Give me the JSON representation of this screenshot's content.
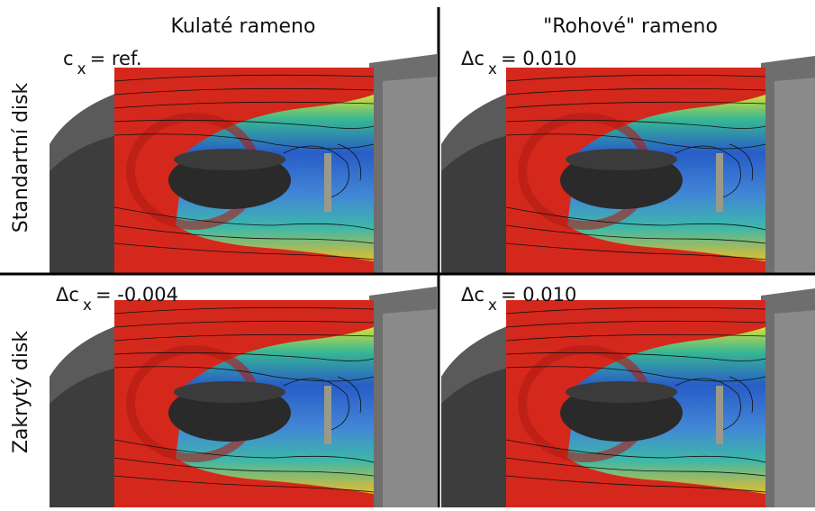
{
  "columns": [
    "Kulaté rameno",
    "\"Rohové\" rameno"
  ],
  "rows": [
    "Standartní disk",
    "Zakrytý disk"
  ],
  "panels": [
    {
      "symbol": "c",
      "subscript": "x",
      "value": "= ref."
    },
    {
      "symbol": "Δc",
      "subscript": "x",
      "value": "= 0.010"
    },
    {
      "symbol": "Δc",
      "subscript": "x",
      "value": "= -0.004"
    },
    {
      "symbol": "Δc",
      "subscript": "x",
      "value": "= 0.010"
    }
  ]
}
